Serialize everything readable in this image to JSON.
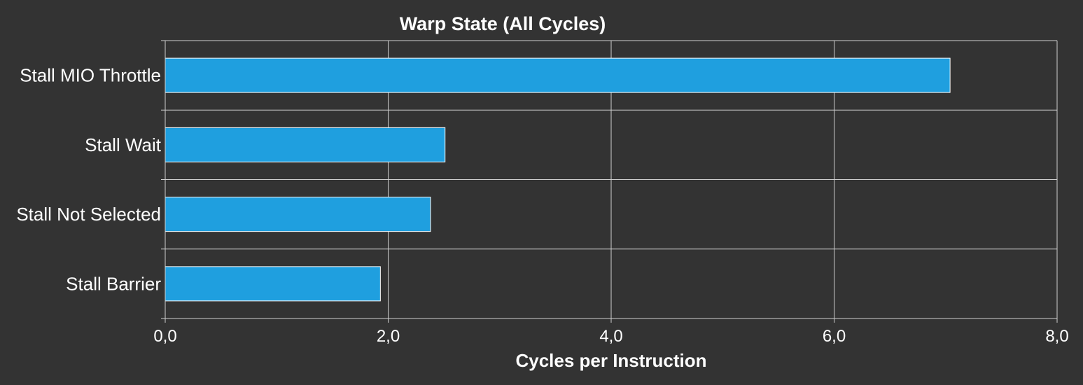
{
  "chart_data": {
    "type": "bar",
    "orientation": "horizontal",
    "title": "Warp State (All Cycles)",
    "xlabel": "Cycles per Instruction",
    "ylabel": "",
    "categories": [
      "Stall MIO Throttle",
      "Stall Wait",
      "Stall Not Selected",
      "Stall Barrier"
    ],
    "values": [
      7.04,
      2.51,
      2.38,
      1.93
    ],
    "xlim": [
      0,
      8
    ],
    "xticks": [
      0,
      2,
      4,
      6,
      8
    ],
    "xtick_labels": [
      "0,0",
      "2,0",
      "4,0",
      "6,0",
      "8,0"
    ],
    "grid": true,
    "legend": "none",
    "bar_color": "#1f9fdf",
    "background_color": "#333333",
    "text_color": "#ffffff"
  }
}
